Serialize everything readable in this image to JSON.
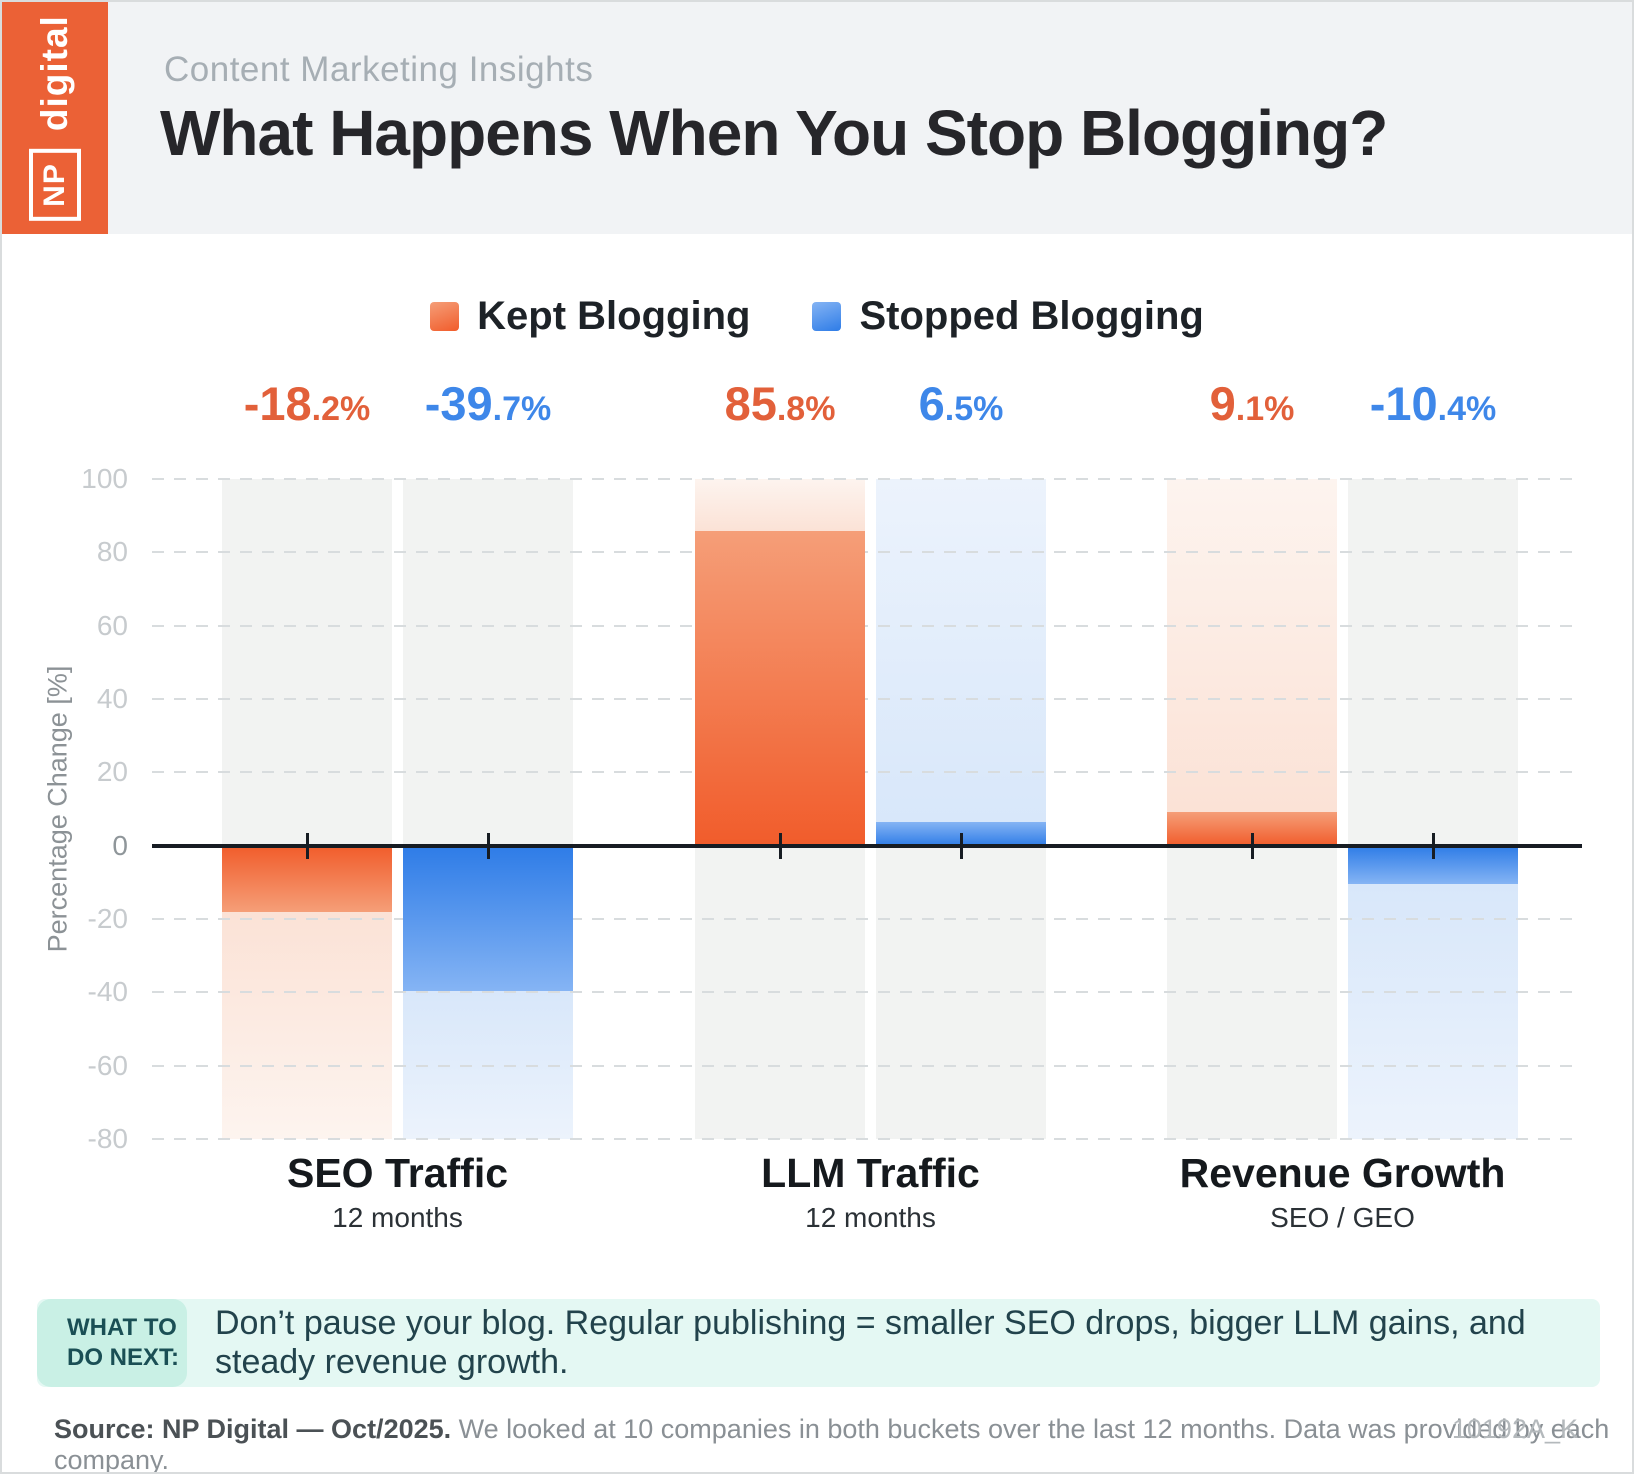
{
  "header": {
    "brand_np": "NP",
    "brand_digital": "digital",
    "eyebrow": "Content Marketing Insights",
    "title": "What Happens When You Stop Blogging?"
  },
  "chart_data": {
    "type": "bar",
    "title": "What Happens When You Stop Blogging?",
    "ylabel": "Percentage Change [%]",
    "ylim": [
      -80,
      100
    ],
    "yticks": [
      100,
      80,
      60,
      40,
      20,
      0,
      -20,
      -40,
      -60,
      -80
    ],
    "grid": "dashed horizontal",
    "legend_position": "top center",
    "categories": [
      "SEO Traffic",
      "LLM Traffic",
      "Revenue Growth"
    ],
    "category_sublabels": [
      "12 months",
      "12 months",
      "SEO / GEO"
    ],
    "series": [
      {
        "name": "Kept Blogging",
        "values": [
          -18.2,
          85.8,
          9.1
        ],
        "color_key": "kept"
      },
      {
        "name": "Stopped Blogging",
        "values": [
          -39.7,
          6.5,
          -10.4
        ],
        "color_key": "stopped"
      }
    ],
    "value_labels": [
      "-18.2%",
      "-39.7%",
      "85.8%",
      "6.5%",
      "9.1%",
      "-10.4%"
    ],
    "colors": {
      "kept": {
        "main": "#f15c2b",
        "tip": "#f59e78",
        "tint_strong": "#fbe2d6",
        "tint_weak": "#fdf4ef",
        "label": "#e2603a"
      },
      "stopped": {
        "main": "#2e7ce7",
        "tip": "#85b4f4",
        "tint_strong": "#d8e7fa",
        "tint_weak": "#ecf3fc",
        "label": "#3e87e9"
      },
      "column_gray": "#f2f3f2",
      "gridline": "#d8dcde",
      "axis": "#171c23"
    }
  },
  "callout": {
    "label": "WHAT TO DO NEXT:",
    "text": "Don’t pause your blog. Regular publishing = smaller SEO drops, bigger LLM gains, and steady revenue growth."
  },
  "footer": {
    "source_bold": "Source: NP Digital — Oct/2025.",
    "source_rest": " We looked at 10 companies in both buckets over the last 12 months. Data was provided by each company.",
    "code": "10192A_K"
  }
}
